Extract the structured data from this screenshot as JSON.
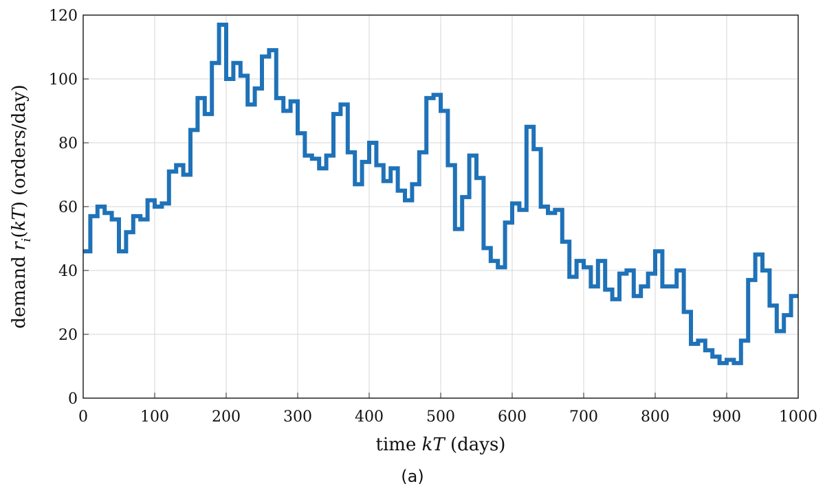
{
  "chart_data": {
    "type": "line",
    "xlabel": "time kT (days)",
    "ylabel_parts": {
      "prefix": "demand ",
      "var": "r",
      "sub": "i",
      "arg": "(kT)",
      "unit": " (orders/day)"
    },
    "xlim": [
      0,
      1000
    ],
    "ylim": [
      0,
      120
    ],
    "x_ticks": [
      "0",
      "100",
      "200",
      "300",
      "400",
      "500",
      "600",
      "700",
      "800",
      "900",
      "1000"
    ],
    "y_ticks": [
      "0",
      "20",
      "40",
      "60",
      "80",
      "100",
      "120"
    ],
    "grid": true,
    "line_color": "#1f72b8",
    "step_width": 10,
    "series": [
      {
        "x": [
          0,
          10,
          20,
          30,
          40,
          50,
          60,
          70,
          80,
          90,
          100,
          110,
          120,
          130,
          140,
          150,
          160,
          170,
          180,
          190,
          200,
          210,
          220,
          230,
          240,
          250,
          260,
          270,
          280,
          290,
          300,
          310,
          320,
          330,
          340,
          350,
          360,
          370,
          380,
          390,
          400,
          410,
          420,
          430,
          440,
          450,
          460,
          470,
          480,
          490,
          500,
          510,
          520,
          530,
          540,
          550,
          560,
          570,
          580,
          590,
          600,
          610,
          620,
          630,
          640,
          650,
          660,
          670,
          680,
          690,
          700,
          710,
          720,
          730,
          740,
          750,
          760,
          770,
          780,
          790,
          800,
          810,
          820,
          830,
          840,
          850,
          860,
          870,
          880,
          890,
          900,
          910,
          920,
          930,
          940,
          950,
          960,
          970,
          980,
          990
        ],
        "values": [
          46,
          57,
          60,
          58,
          56,
          46,
          52,
          57,
          56,
          62,
          60,
          61,
          71,
          73,
          70,
          84,
          94,
          89,
          105,
          117,
          100,
          105,
          101,
          92,
          97,
          107,
          109,
          94,
          90,
          93,
          83,
          76,
          75,
          72,
          76,
          89,
          92,
          77,
          67,
          74,
          80,
          73,
          68,
          72,
          65,
          62,
          67,
          77,
          94,
          95,
          90,
          73,
          53,
          63,
          76,
          69,
          47,
          43,
          41,
          55,
          61,
          59,
          85,
          78,
          60,
          58,
          59,
          49,
          38,
          43,
          41,
          35,
          43,
          34,
          31,
          39,
          40,
          32,
          35,
          39,
          46,
          35,
          35,
          40,
          27,
          17,
          18,
          15,
          13,
          11,
          12,
          11,
          18,
          37,
          45,
          40,
          29,
          21,
          26,
          32
        ]
      }
    ],
    "caption": "(a)"
  }
}
